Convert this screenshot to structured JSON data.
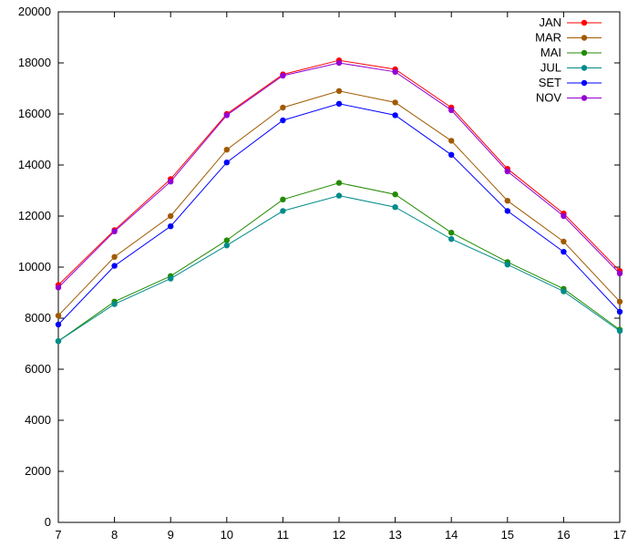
{
  "chart_data": {
    "type": "line",
    "title": "",
    "xlabel": "",
    "ylabel": "",
    "xlim": [
      7,
      17
    ],
    "ylim": [
      0,
      20000
    ],
    "x": [
      7,
      8,
      9,
      10,
      11,
      12,
      13,
      14,
      15,
      16,
      17
    ],
    "xticks": [
      "7",
      "8",
      "9",
      "10",
      "11",
      "12",
      "13",
      "14",
      "15",
      "16",
      "17"
    ],
    "yticks": [
      "0",
      "2000",
      "4000",
      "6000",
      "8000",
      "10000",
      "12000",
      "14000",
      "16000",
      "18000",
      "20000"
    ],
    "grid": false,
    "legend_position": "top-right",
    "series": [
      {
        "name": "JAN",
        "color": "#ff0000",
        "values": [
          9300,
          11450,
          13450,
          16000,
          17550,
          18100,
          17750,
          16250,
          13850,
          12100,
          9850
        ]
      },
      {
        "name": "MAR",
        "color": "#a05a00",
        "values": [
          8100,
          10400,
          12000,
          14600,
          16250,
          16900,
          16450,
          14950,
          12600,
          11000,
          8650
        ]
      },
      {
        "name": "MAI",
        "color": "#228b00",
        "values": [
          7100,
          8650,
          9650,
          11050,
          12650,
          13300,
          12850,
          11350,
          10200,
          9150,
          7550
        ]
      },
      {
        "name": "JUL",
        "color": "#008b8b",
        "values": [
          7100,
          8550,
          9550,
          10850,
          12200,
          12800,
          12350,
          11100,
          10100,
          9050,
          7500
        ]
      },
      {
        "name": "SET",
        "color": "#0000ff",
        "values": [
          7750,
          10050,
          11600,
          14100,
          15750,
          16400,
          15950,
          14400,
          12200,
          10600,
          8250
        ]
      },
      {
        "name": "NOV",
        "color": "#9400d3",
        "values": [
          9200,
          11400,
          13350,
          15950,
          17500,
          18000,
          17650,
          16150,
          13750,
          12000,
          9750
        ]
      }
    ]
  }
}
